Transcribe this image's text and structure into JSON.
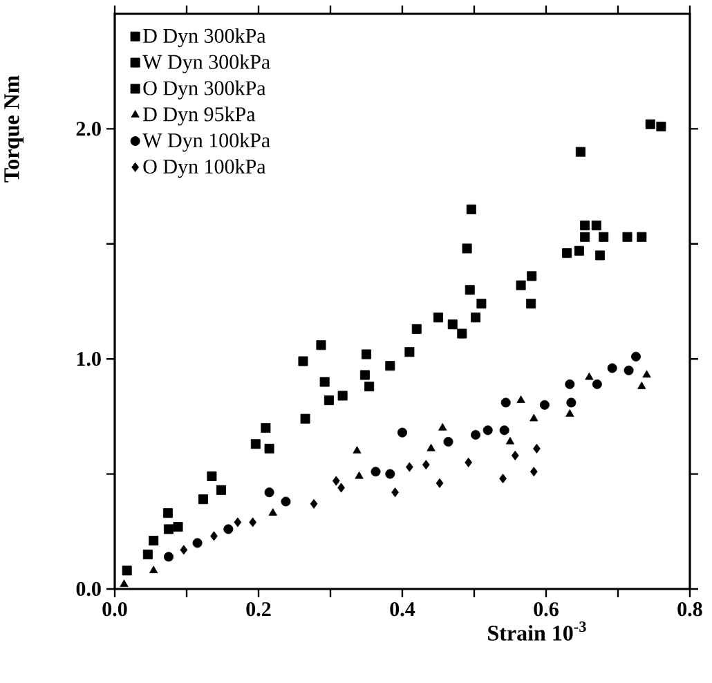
{
  "chart_data": {
    "type": "scatter",
    "xlabel": "Strain  10$^{-3}$",
    "ylabel": "Torque Nm",
    "xlim": [
      0,
      0.8
    ],
    "ylim": [
      0,
      2.5
    ],
    "xticks": [
      {
        "value": 0,
        "label": "0.0"
      },
      {
        "value": 0.1,
        "label": null
      },
      0.2,
      {
        "value": 0.3,
        "label": null
      },
      0.4,
      {
        "value": 0.5,
        "label": null
      },
      0.6,
      {
        "value": 0.7,
        "label": null
      },
      0.8
    ],
    "yticks": [
      {
        "value": 0,
        "label": "0.0"
      },
      {
        "value": 0.5,
        "label": null
      },
      {
        "value": 1,
        "label": "1.0"
      },
      {
        "value": 1.5,
        "label": null
      },
      {
        "value": 2,
        "label": "2.0"
      }
    ],
    "legend": "top left",
    "grid": false,
    "series": [
      {
        "name": "D Dyn 300kPa",
        "color": "#000000",
        "marker": "square",
        "x": [
          0.017,
          0.046,
          0.088,
          0.148,
          0.196,
          0.215,
          0.265,
          0.317,
          0.41,
          0.494,
          0.51,
          0.58,
          0.654,
          0.654,
          0.67
        ],
        "values": [
          0.08,
          0.15,
          0.27,
          0.43,
          0.63,
          0.61,
          0.74,
          0.84,
          1.03,
          1.3,
          1.24,
          1.36,
          1.53,
          1.58,
          1.58
        ]
      },
      {
        "name": "W Dyn 300kPa",
        "color": "#000000",
        "marker": "square",
        "x": [
          0.075,
          0.123,
          0.262,
          0.298,
          0.348,
          0.354,
          0.383,
          0.47,
          0.483,
          0.496,
          0.502,
          0.565,
          0.579,
          0.629,
          0.646,
          0.648,
          0.675,
          0.68,
          0.713,
          0.733,
          0.745,
          0.76
        ],
        "values": [
          0.26,
          0.39,
          0.99,
          0.82,
          0.93,
          0.88,
          0.97,
          1.15,
          1.11,
          1.65,
          1.18,
          1.32,
          1.24,
          1.46,
          1.47,
          1.9,
          1.45,
          1.53,
          1.53,
          1.53,
          2.02,
          2.01
        ]
      },
      {
        "name": "O Dyn 300kPa",
        "color": "#000000",
        "marker": "square",
        "x": [
          0.054,
          0.074,
          0.135,
          0.21,
          0.287,
          0.292,
          0.35,
          0.42,
          0.45,
          0.49
        ],
        "values": [
          0.21,
          0.33,
          0.49,
          0.7,
          1.06,
          0.9,
          1.02,
          1.13,
          1.18,
          1.48
        ]
      },
      {
        "name": "D Dyn 95kPa",
        "color": "#000000",
        "marker": "triangle",
        "x": [
          0.013,
          0.054,
          0.22,
          0.337,
          0.34,
          0.44,
          0.456,
          0.55,
          0.565,
          0.583,
          0.633,
          0.66,
          0.733,
          0.74
        ],
        "values": [
          0.02,
          0.08,
          0.33,
          0.6,
          0.49,
          0.61,
          0.7,
          0.64,
          0.82,
          0.74,
          0.76,
          0.92,
          0.88,
          0.93
        ]
      },
      {
        "name": "W Dyn 100kPa",
        "color": "#000000",
        "marker": "circle",
        "x": [
          0.075,
          0.115,
          0.158,
          0.215,
          0.238,
          0.363,
          0.383,
          0.4,
          0.464,
          0.502,
          0.519,
          0.542,
          0.544,
          0.598,
          0.635,
          0.633,
          0.671,
          0.692,
          0.715,
          0.725
        ],
        "values": [
          0.14,
          0.2,
          0.26,
          0.42,
          0.38,
          0.51,
          0.5,
          0.68,
          0.64,
          0.67,
          0.69,
          0.69,
          0.81,
          0.8,
          0.81,
          0.89,
          0.89,
          0.96,
          0.95,
          1.01
        ]
      },
      {
        "name": "O Dyn 100kPa",
        "color": "#000000",
        "marker": "diamond",
        "x": [
          0.096,
          0.138,
          0.171,
          0.192,
          0.277,
          0.308,
          0.315,
          0.39,
          0.41,
          0.433,
          0.452,
          0.492,
          0.54,
          0.557,
          0.583,
          0.587
        ],
        "values": [
          0.17,
          0.23,
          0.29,
          0.29,
          0.37,
          0.47,
          0.44,
          0.42,
          0.53,
          0.54,
          0.46,
          0.55,
          0.48,
          0.58,
          0.51,
          0.61
        ]
      }
    ]
  }
}
